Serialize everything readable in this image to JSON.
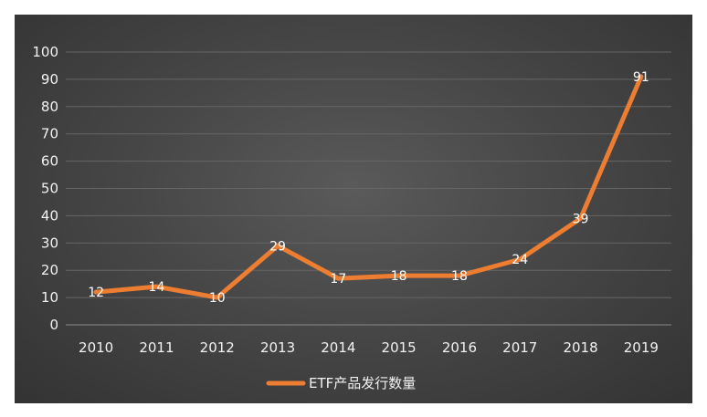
{
  "chart_data": {
    "type": "line",
    "title": "",
    "xlabel": "",
    "ylabel": "",
    "categories": [
      "2010",
      "2011",
      "2012",
      "2013",
      "2014",
      "2015",
      "2016",
      "2017",
      "2018",
      "2019"
    ],
    "series": [
      {
        "name": "ETF产品发行数量",
        "values": [
          12,
          14,
          10,
          29,
          17,
          18,
          18,
          24,
          39,
          91
        ],
        "color": "#ed7d31"
      }
    ],
    "ylim": [
      0,
      100
    ],
    "yticks": [
      0,
      10,
      20,
      30,
      40,
      50,
      60,
      70,
      80,
      90,
      100
    ],
    "grid": true,
    "legend_position": "bottom",
    "data_labels": true
  }
}
